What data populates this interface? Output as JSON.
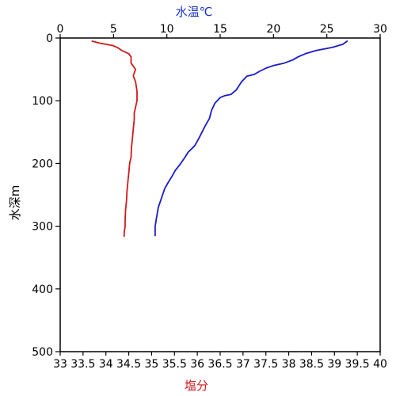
{
  "chart_data": {
    "type": "line",
    "left_axis": {
      "label": "水深m",
      "min": 0,
      "max": 500,
      "ticks": [
        0,
        100,
        200,
        300,
        400,
        500
      ],
      "reversed": true
    },
    "top_axis": {
      "label": "水温℃",
      "min": 0,
      "max": 30,
      "ticks": [
        0,
        5,
        10,
        15,
        20,
        25,
        30
      ],
      "color": "#1a33c8"
    },
    "bottom_axis": {
      "label": "塩分",
      "min": 33,
      "max": 40,
      "ticks": [
        "33",
        "33.5",
        "34",
        "34.5",
        "35",
        "35.5",
        "36",
        "36.5",
        "37",
        "37.5",
        "38",
        "38.5",
        "39",
        "39.5",
        "40"
      ],
      "color": "#d11a1a"
    },
    "series": [
      {
        "id": "temperature",
        "axis": "top",
        "color": "#1a1acc",
        "points": [
          [
            26.9,
            5
          ],
          [
            26.5,
            10
          ],
          [
            25.5,
            15
          ],
          [
            24.0,
            20
          ],
          [
            23.0,
            25
          ],
          [
            22.3,
            30
          ],
          [
            21.8,
            35
          ],
          [
            21.0,
            40
          ],
          [
            20.0,
            44
          ],
          [
            19.3,
            48
          ],
          [
            18.7,
            53
          ],
          [
            18.2,
            58
          ],
          [
            17.5,
            61
          ],
          [
            17.0,
            70
          ],
          [
            16.5,
            83
          ],
          [
            16.0,
            90
          ],
          [
            15.4,
            92
          ],
          [
            15.0,
            95
          ],
          [
            14.5,
            104
          ],
          [
            14.2,
            115
          ],
          [
            14.0,
            128
          ],
          [
            13.6,
            140
          ],
          [
            13.3,
            150
          ],
          [
            13.0,
            160
          ],
          [
            12.6,
            172
          ],
          [
            12.0,
            182
          ],
          [
            11.7,
            190
          ],
          [
            11.3,
            200
          ],
          [
            10.8,
            211
          ],
          [
            10.5,
            220
          ],
          [
            10.1,
            231
          ],
          [
            9.8,
            240
          ],
          [
            9.6,
            250
          ],
          [
            9.4,
            260
          ],
          [
            9.2,
            270
          ],
          [
            9.1,
            280
          ],
          [
            9.0,
            290
          ],
          [
            8.9,
            300
          ],
          [
            8.9,
            310
          ],
          [
            8.9,
            315
          ]
        ]
      },
      {
        "id": "salinity",
        "axis": "bottom",
        "color": "#d11a1a",
        "points": [
          [
            33.7,
            5
          ],
          [
            33.85,
            8
          ],
          [
            34.0,
            10
          ],
          [
            34.15,
            12
          ],
          [
            34.25,
            15
          ],
          [
            34.35,
            20
          ],
          [
            34.5,
            25
          ],
          [
            34.55,
            30
          ],
          [
            34.55,
            40
          ],
          [
            34.6,
            45
          ],
          [
            34.65,
            50
          ],
          [
            34.6,
            60
          ],
          [
            34.65,
            70
          ],
          [
            34.68,
            85
          ],
          [
            34.68,
            100
          ],
          [
            34.65,
            110
          ],
          [
            34.62,
            120
          ],
          [
            34.62,
            130
          ],
          [
            34.6,
            145
          ],
          [
            34.58,
            160
          ],
          [
            34.56,
            175
          ],
          [
            34.55,
            190
          ],
          [
            34.52,
            200
          ],
          [
            34.5,
            215
          ],
          [
            34.48,
            230
          ],
          [
            34.46,
            245
          ],
          [
            34.45,
            260
          ],
          [
            34.43,
            275
          ],
          [
            34.42,
            290
          ],
          [
            34.42,
            300
          ],
          [
            34.4,
            310
          ],
          [
            34.4,
            316
          ]
        ]
      }
    ]
  }
}
